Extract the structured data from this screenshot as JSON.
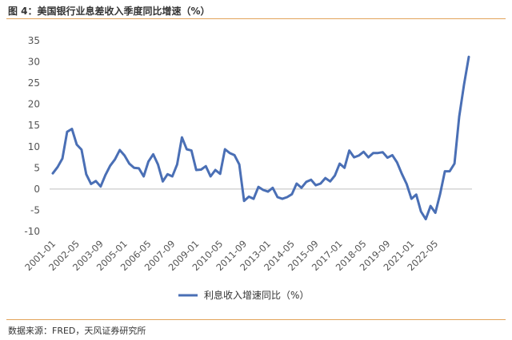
{
  "header": {
    "title": "图 4：美国银行业息差收入季度同比增速（%）"
  },
  "footer": {
    "source": "数据来源：FRED，天风证券研究所"
  },
  "chart_data": {
    "type": "line",
    "title": "图 4：美国银行业息差收入季度同比增速（%）",
    "xlabel": "",
    "ylabel": "",
    "ylim": [
      -10,
      35
    ],
    "yticks": [
      35,
      30,
      25,
      20,
      15,
      10,
      5,
      0,
      -5,
      -10
    ],
    "xtick_labels": [
      "2001-01",
      "2002-05",
      "2003-09",
      "2005-01",
      "2006-05",
      "2007-09",
      "2009-01",
      "2010-05",
      "2011-09",
      "2013-01",
      "2014-05",
      "2015-09",
      "2017-01",
      "2018-05",
      "2019-09",
      "2021-01",
      "2022-05"
    ],
    "grid": false,
    "legend": "bottom-center",
    "colors": {
      "line": "#4a6fb5"
    },
    "series": [
      {
        "name": "利息收入增速同比（%）",
        "values": [
          3.7,
          5.2,
          7.2,
          13.5,
          14.2,
          10.5,
          9.3,
          3.5,
          1.2,
          1.9,
          0.6,
          3.3,
          5.5,
          7.0,
          9.2,
          7.9,
          6.0,
          5.0,
          4.9,
          3.0,
          6.5,
          8.2,
          5.8,
          1.8,
          3.5,
          3.0,
          5.8,
          12.2,
          9.4,
          9.1,
          4.5,
          4.6,
          5.4,
          3.0,
          4.5,
          3.6,
          9.4,
          8.5,
          8.0,
          5.8,
          -2.8,
          -1.8,
          -2.3,
          0.5,
          -0.2,
          -0.6,
          0.3,
          -1.9,
          -2.3,
          -1.9,
          -1.2,
          1.3,
          0.3,
          1.7,
          2.2,
          0.9,
          1.3,
          2.6,
          1.8,
          3.2,
          6.0,
          5.0,
          9.1,
          7.5,
          7.9,
          8.8,
          7.5,
          8.5,
          8.5,
          8.7,
          7.4,
          8.0,
          6.3,
          3.6,
          1.2,
          -2.3,
          -1.3,
          -5.3,
          -7.1,
          -4.0,
          -5.6,
          -1.2,
          4.2,
          4.2,
          6.0,
          17.1,
          24.6,
          31.2
        ]
      }
    ]
  }
}
